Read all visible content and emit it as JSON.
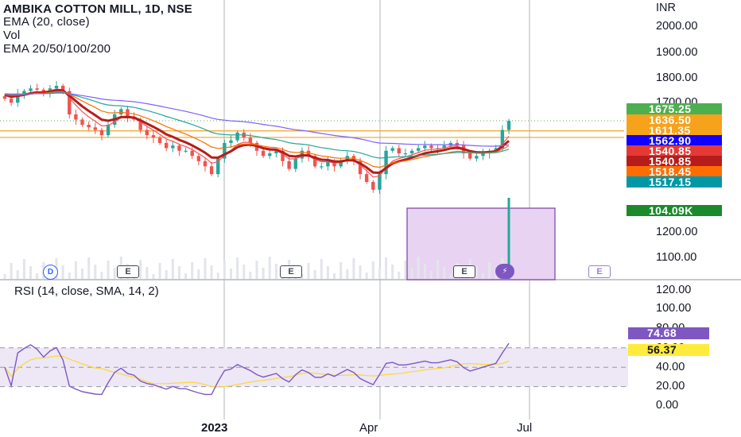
{
  "header": {
    "title": "AMBIKA COTTON MILL, 1D, NSE",
    "indicator_1": "EMA (20, close)",
    "indicator_2": "Vol",
    "indicator_3": "EMA 20/50/100/200"
  },
  "currency": "INR",
  "price_axis_labels": [
    "2000.00",
    "1900.00",
    "1800.00",
    "1700.00",
    "1200.00",
    "1100.00"
  ],
  "price_tags": [
    {
      "value": "1675.25",
      "color": "#4caf50"
    },
    {
      "value": "1636.50",
      "color": "#f7a21b"
    },
    {
      "value": "1611.35",
      "color": "#f7a21b"
    },
    {
      "value": "1562.90",
      "color": "#1100ff"
    },
    {
      "value": "1540.85",
      "color": "#e53935"
    },
    {
      "value": "1540.85",
      "color": "#b71c1c"
    },
    {
      "value": "1518.45",
      "color": "#ff6d00"
    },
    {
      "value": "1517.15",
      "color": "#0097a7"
    },
    {
      "value": "104.09K",
      "color": "#1b8a2d"
    }
  ],
  "rsi": {
    "legend": "RSI (14, close, SMA, 14, 2)",
    "axis_labels": [
      "120.00",
      "100.00",
      "80.00",
      "60.00",
      "40.00",
      "20.00",
      "0.00"
    ],
    "value_tag": "74.68",
    "sma_tag": "56.37",
    "colors": {
      "rsi": "#7e57c2",
      "sma": "#fdd835",
      "band": "#ede7f6"
    }
  },
  "time_axis": [
    "2023",
    "Apr",
    "Jul"
  ],
  "events": {
    "dividend": "D",
    "earnings": "E",
    "flash": "⚡"
  },
  "chart_data": [
    {
      "type": "candlestick",
      "title": "AMBIKA COTTON MILL, 1D, NSE",
      "x_axis": "date",
      "ylim": [
        1050,
        2100
      ],
      "last_close": 1675.25,
      "approx_closes": [
        1760,
        1745,
        1780,
        1790,
        1800,
        1795,
        1785,
        1800,
        1810,
        1790,
        1700,
        1680,
        1660,
        1650,
        1640,
        1620,
        1660,
        1700,
        1720,
        1690,
        1680,
        1640,
        1620,
        1610,
        1590,
        1570,
        1580,
        1560,
        1560,
        1540,
        1520,
        1500,
        1470,
        1530,
        1590,
        1600,
        1630,
        1610,
        1590,
        1560,
        1540,
        1550,
        1560,
        1520,
        1490,
        1530,
        1560,
        1540,
        1500,
        1500,
        1520,
        1500,
        1520,
        1540,
        1520,
        1470,
        1440,
        1410,
        1470,
        1560,
        1570,
        1550,
        1550,
        1560,
        1570,
        1580,
        1570,
        1570,
        1580,
        1590,
        1580,
        1550,
        1530,
        1540,
        1550,
        1560,
        1570,
        1640,
        1675
      ],
      "series": [
        {
          "name": "EMA (20, close)",
          "color": "#ff5252"
        },
        {
          "name": "EMA 20",
          "color": "#e53935"
        },
        {
          "name": "EMA 50",
          "color": "#ff6d00"
        },
        {
          "name": "EMA 100",
          "color": "#26a69a"
        },
        {
          "name": "EMA 200",
          "color": "#7b61ff"
        }
      ],
      "horizontal_levels": [
        1636.5,
        1611.35
      ]
    },
    {
      "type": "bar",
      "title": "Vol",
      "last_value": "104.09K"
    },
    {
      "type": "line",
      "title": "RSI (14, close, SMA, 14, 2)",
      "ylim": [
        0,
        120
      ],
      "bands": [
        30,
        70
      ],
      "series": [
        {
          "name": "RSI",
          "last": 74.68
        },
        {
          "name": "SMA",
          "last": 56.37
        }
      ]
    }
  ]
}
